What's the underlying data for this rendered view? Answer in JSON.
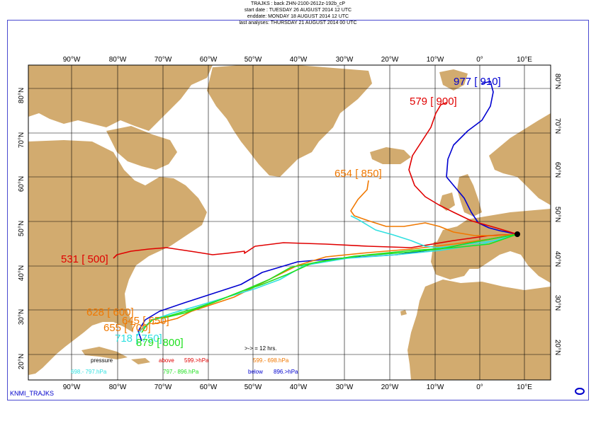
{
  "header": {
    "line1": "TRAJKS : back ZHN-2100-2612z-192b_cP",
    "line2": "start date : TUESDAY   26 AUGUST    2014 12 UTC",
    "line3": "enddate: MONDAY    18 AUGUST    2014 12 UTC",
    "line4": "last analyses: THURSDAY  21 AUGUST    2014 00 UTC"
  },
  "lon_labels": [
    "90°W",
    "80°W",
    "70°W",
    "60°W",
    "50°W",
    "40°W",
    "30°W",
    "20°W",
    "10°W",
    "0°",
    "10°E"
  ],
  "lat_labels": [
    "80°N",
    "70°N",
    "60°N",
    "50°N",
    "40°N",
    "30°N",
    "20°N"
  ],
  "colors": {
    "land": "#d2ab6f",
    "sea": "#ffffff",
    "grid": "#000000",
    "red": "#e00000",
    "orange": "#f07800",
    "cyan": "#30e0e0",
    "green": "#20e020",
    "blue": "#0000d0",
    "frame": "#4a4ad0"
  },
  "trajectories": [
    {
      "color": "blue",
      "label": "977 [ 910]"
    },
    {
      "color": "red",
      "label": "579 [ 900]"
    },
    {
      "color": "orange",
      "label": "654 [ 850]"
    },
    {
      "color": "red",
      "label": "531 [ 500]"
    },
    {
      "color": "orange",
      "label": "628 [ 600]"
    },
    {
      "color": "orange",
      "label": "645 [ 650]"
    },
    {
      "color": "orange",
      "label": "655 [ 700]"
    },
    {
      "color": "cyan",
      "label": "718 [ 750]"
    },
    {
      "color": "green",
      "label": "879 [ 800]"
    }
  ],
  "legend": {
    "step": ">-> = 12 hrs.",
    "pressure": "pressure",
    "above": "above",
    "above_val": "599.>hPa",
    "orange_range": "599.-   698.hPa",
    "cyan_range": "698.-   797.hPa",
    "green_range": "797.-   896.hPa",
    "below": "below",
    "below_val": "896.>hPa"
  },
  "footer": {
    "left": "KNMI_TRAJKS",
    "logo": "ECMWF-logo-icon"
  }
}
